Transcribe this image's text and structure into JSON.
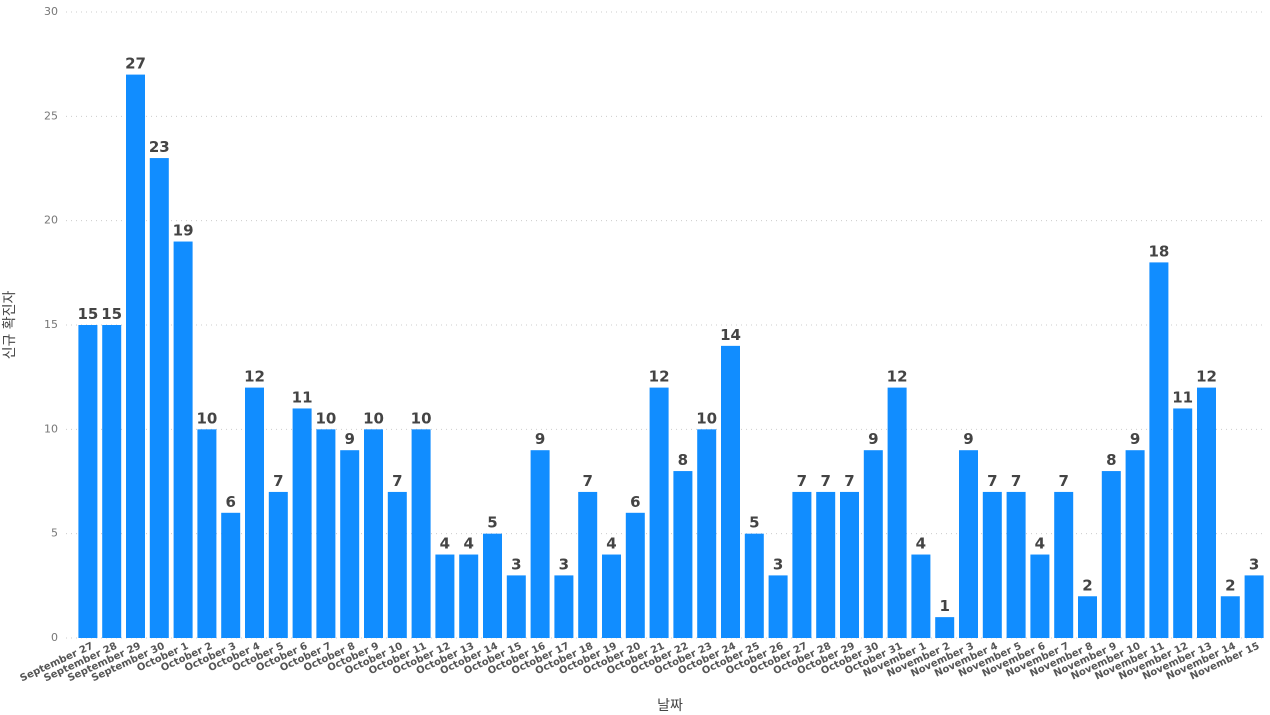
{
  "chart_data": {
    "type": "bar",
    "x_label": "날짜",
    "y_label": "신규 확진자",
    "categories": [
      "September 27",
      "September 28",
      "September 29",
      "September 30",
      "October 1",
      "October 2",
      "October 3",
      "October 4",
      "October 5",
      "October 6",
      "October 7",
      "October 8",
      "October 9",
      "October 10",
      "October 11",
      "October 12",
      "October 13",
      "October 14",
      "October 15",
      "October 16",
      "October 17",
      "October 18",
      "October 19",
      "October 20",
      "October 21",
      "October 22",
      "October 23",
      "October 24",
      "October 25",
      "October 26",
      "October 27",
      "October 28",
      "October 29",
      "October 30",
      "October 31",
      "November 1",
      "November 2",
      "November 3",
      "November 4",
      "November 5",
      "November 6",
      "November 7",
      "November 8",
      "November 9",
      "November 10",
      "November 11",
      "November 12",
      "November 13",
      "November 14",
      "November 15"
    ],
    "values": [
      15,
      15,
      27,
      23,
      19,
      10,
      6,
      12,
      7,
      11,
      10,
      9,
      10,
      7,
      10,
      4,
      4,
      5,
      3,
      9,
      3,
      7,
      4,
      6,
      12,
      8,
      10,
      14,
      5,
      3,
      7,
      7,
      7,
      9,
      12,
      4,
      1,
      9,
      7,
      7,
      4,
      7,
      2,
      8,
      9,
      18,
      11,
      12,
      2,
      3
    ],
    "color": "#118dff",
    "ylim": [
      0,
      30
    ],
    "yticks": [
      0,
      5,
      10,
      15,
      20,
      25,
      30
    ],
    "grid": true
  }
}
